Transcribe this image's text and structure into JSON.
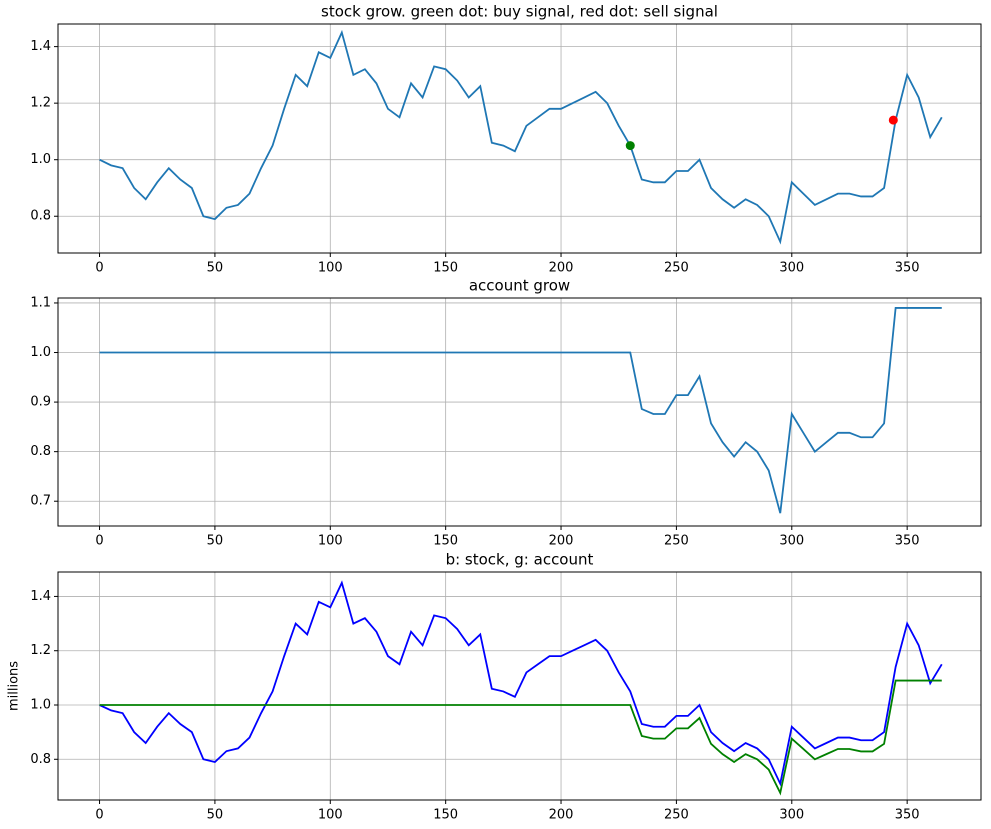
{
  "chart_data": [
    {
      "type": "line",
      "title": "stock grow. green dot: buy signal, red dot: sell signal",
      "x": [
        0,
        5,
        10,
        15,
        20,
        25,
        30,
        35,
        40,
        45,
        50,
        55,
        60,
        65,
        70,
        75,
        80,
        85,
        90,
        95,
        100,
        105,
        110,
        115,
        120,
        125,
        130,
        135,
        140,
        145,
        150,
        155,
        160,
        165,
        170,
        175,
        180,
        185,
        190,
        195,
        200,
        205,
        210,
        215,
        220,
        225,
        230,
        235,
        240,
        245,
        250,
        255,
        260,
        265,
        270,
        275,
        280,
        285,
        290,
        295,
        300,
        305,
        310,
        315,
        320,
        325,
        330,
        335,
        340,
        345,
        350,
        355,
        360,
        365
      ],
      "series": [
        {
          "color": "#1f77b4",
          "values": [
            1.0,
            0.98,
            0.97,
            0.9,
            0.86,
            0.92,
            0.97,
            0.93,
            0.9,
            0.8,
            0.79,
            0.83,
            0.84,
            0.88,
            0.97,
            1.05,
            1.18,
            1.3,
            1.26,
            1.38,
            1.36,
            1.45,
            1.3,
            1.32,
            1.27,
            1.18,
            1.15,
            1.27,
            1.22,
            1.33,
            1.32,
            1.28,
            1.22,
            1.26,
            1.06,
            1.05,
            1.03,
            1.12,
            1.15,
            1.18,
            1.18,
            1.2,
            1.22,
            1.24,
            1.2,
            1.12,
            1.05,
            0.93,
            0.92,
            0.92,
            0.96,
            0.96,
            1.0,
            0.9,
            0.86,
            0.83,
            0.86,
            0.84,
            0.8,
            0.71,
            0.92,
            0.88,
            0.84,
            0.86,
            0.88,
            0.88,
            0.87,
            0.87,
            0.9,
            1.14,
            1.3,
            1.22,
            1.08,
            1.15
          ]
        }
      ],
      "points": [
        {
          "x": 230,
          "y": 1.05,
          "color": "#008000"
        },
        {
          "x": 344,
          "y": 1.14,
          "color": "#ff0000"
        }
      ],
      "xlim": [
        -18,
        382
      ],
      "xticks": [
        0,
        50,
        100,
        150,
        200,
        250,
        300,
        350
      ],
      "ylim": [
        0.67,
        1.48
      ],
      "yticks": [
        0.8,
        {
          "value": 1,
          "label": "1.0"
        },
        1.2,
        1.4
      ],
      "grid": true
    },
    {
      "type": "line",
      "title": "account grow",
      "x": [
        0,
        5,
        10,
        15,
        20,
        25,
        30,
        35,
        40,
        45,
        50,
        55,
        60,
        65,
        70,
        75,
        80,
        85,
        90,
        95,
        100,
        105,
        110,
        115,
        120,
        125,
        130,
        135,
        140,
        145,
        150,
        155,
        160,
        165,
        170,
        175,
        180,
        185,
        190,
        195,
        200,
        205,
        210,
        215,
        220,
        225,
        230,
        235,
        240,
        245,
        250,
        255,
        260,
        265,
        270,
        275,
        280,
        285,
        290,
        295,
        300,
        305,
        310,
        315,
        320,
        325,
        330,
        335,
        340,
        345,
        350,
        355,
        360,
        365
      ],
      "series": [
        {
          "color": "#1f77b4",
          "values": [
            1,
            1,
            1,
            1,
            1,
            1,
            1,
            1,
            1,
            1,
            1,
            1,
            1,
            1,
            1,
            1,
            1,
            1,
            1,
            1,
            1,
            1,
            1,
            1,
            1,
            1,
            1,
            1,
            1,
            1,
            1,
            1,
            1,
            1,
            1,
            1,
            1,
            1,
            1,
            1,
            1,
            1,
            1,
            1,
            1,
            1,
            1,
            0.886,
            0.876,
            0.876,
            0.914,
            0.914,
            0.952,
            0.857,
            0.819,
            0.79,
            0.819,
            0.8,
            0.762,
            0.676,
            0.876,
            0.838,
            0.8,
            0.819,
            0.838,
            0.838,
            0.829,
            0.829,
            0.857,
            1.09,
            1.09,
            1.09,
            1.09,
            1.09
          ]
        }
      ],
      "xlim": [
        -18,
        382
      ],
      "xticks": [
        0,
        50,
        100,
        150,
        200,
        250,
        300,
        350
      ],
      "ylim": [
        0.65,
        1.11
      ],
      "yticks": [
        0.7,
        0.8,
        0.9,
        {
          "value": 1,
          "label": "1.0"
        },
        1.1
      ],
      "grid": true
    },
    {
      "type": "line",
      "title": "b: stock, g: account",
      "ylabel": "millions",
      "x": [
        0,
        5,
        10,
        15,
        20,
        25,
        30,
        35,
        40,
        45,
        50,
        55,
        60,
        65,
        70,
        75,
        80,
        85,
        90,
        95,
        100,
        105,
        110,
        115,
        120,
        125,
        130,
        135,
        140,
        145,
        150,
        155,
        160,
        165,
        170,
        175,
        180,
        185,
        190,
        195,
        200,
        205,
        210,
        215,
        220,
        225,
        230,
        235,
        240,
        245,
        250,
        255,
        260,
        265,
        270,
        275,
        280,
        285,
        290,
        295,
        300,
        305,
        310,
        315,
        320,
        325,
        330,
        335,
        340,
        345,
        350,
        355,
        360,
        365
      ],
      "series": [
        {
          "color": "#0000ff",
          "values": [
            1.0,
            0.98,
            0.97,
            0.9,
            0.86,
            0.92,
            0.97,
            0.93,
            0.9,
            0.8,
            0.79,
            0.83,
            0.84,
            0.88,
            0.97,
            1.05,
            1.18,
            1.3,
            1.26,
            1.38,
            1.36,
            1.45,
            1.3,
            1.32,
            1.27,
            1.18,
            1.15,
            1.27,
            1.22,
            1.33,
            1.32,
            1.28,
            1.22,
            1.26,
            1.06,
            1.05,
            1.03,
            1.12,
            1.15,
            1.18,
            1.18,
            1.2,
            1.22,
            1.24,
            1.2,
            1.12,
            1.05,
            0.93,
            0.92,
            0.92,
            0.96,
            0.96,
            1.0,
            0.9,
            0.86,
            0.83,
            0.86,
            0.84,
            0.8,
            0.71,
            0.92,
            0.88,
            0.84,
            0.86,
            0.88,
            0.88,
            0.87,
            0.87,
            0.9,
            1.14,
            1.3,
            1.22,
            1.08,
            1.15
          ]
        },
        {
          "color": "#008000",
          "values": [
            1,
            1,
            1,
            1,
            1,
            1,
            1,
            1,
            1,
            1,
            1,
            1,
            1,
            1,
            1,
            1,
            1,
            1,
            1,
            1,
            1,
            1,
            1,
            1,
            1,
            1,
            1,
            1,
            1,
            1,
            1,
            1,
            1,
            1,
            1,
            1,
            1,
            1,
            1,
            1,
            1,
            1,
            1,
            1,
            1,
            1,
            1,
            0.886,
            0.876,
            0.876,
            0.914,
            0.914,
            0.952,
            0.857,
            0.819,
            0.79,
            0.819,
            0.8,
            0.762,
            0.676,
            0.876,
            0.838,
            0.8,
            0.819,
            0.838,
            0.838,
            0.829,
            0.829,
            0.857,
            1.09,
            1.09,
            1.09,
            1.09,
            1.09
          ]
        }
      ],
      "xlim": [
        -18,
        382
      ],
      "xticks": [
        0,
        50,
        100,
        150,
        200,
        250,
        300,
        350
      ],
      "ylim": [
        0.65,
        1.49
      ],
      "yticks": [
        0.8,
        {
          "value": 1,
          "label": "1.0"
        },
        1.2,
        1.4
      ],
      "grid": true
    }
  ]
}
